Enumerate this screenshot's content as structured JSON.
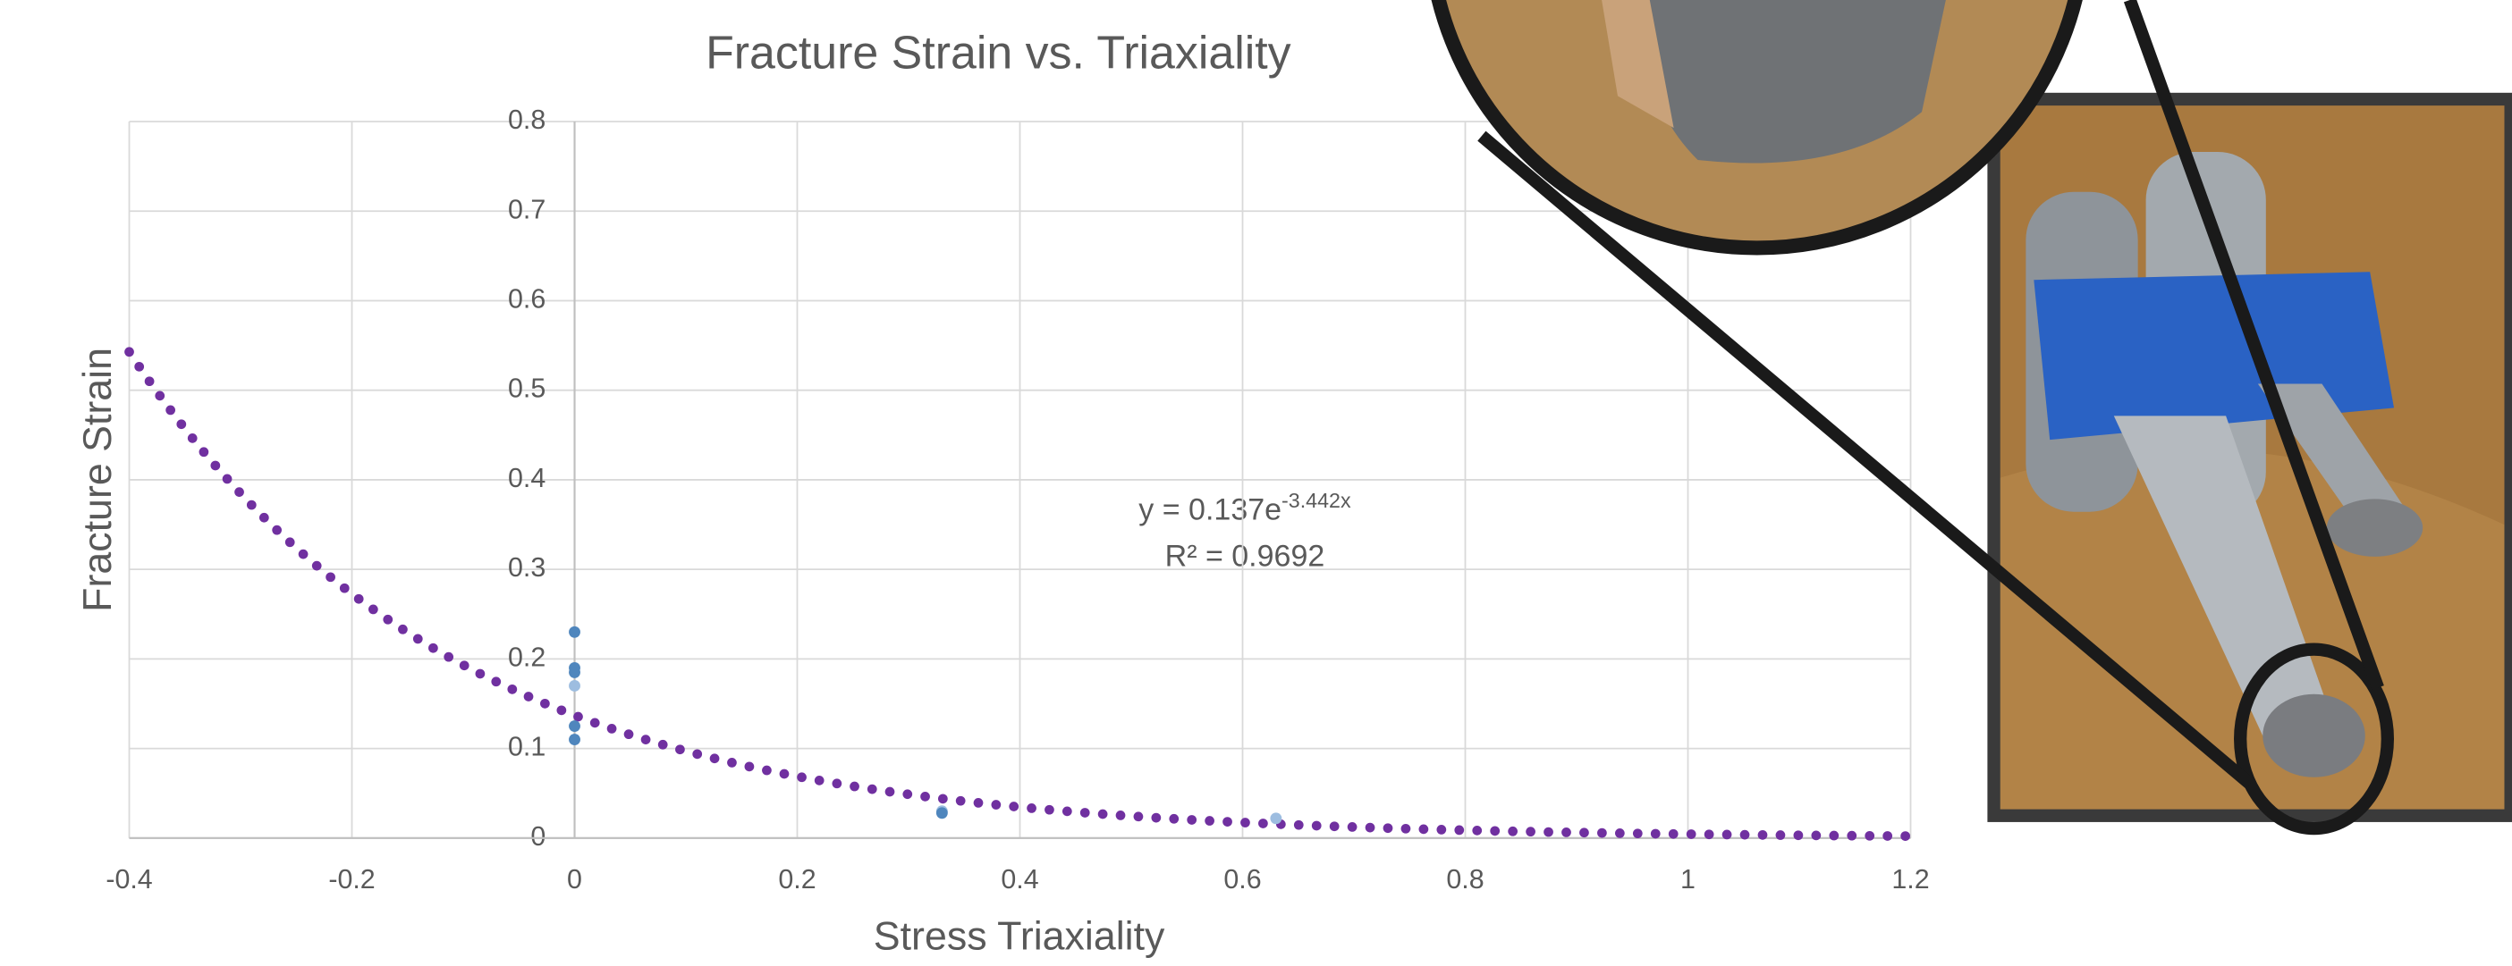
{
  "chart_data": {
    "type": "scatter",
    "title": "Fracture Strain vs. Triaxiality",
    "x_label": "Stress Triaxiality",
    "y_label": "Fracture Strain",
    "x": [
      0,
      0,
      0,
      0,
      0,
      0,
      0.33,
      0.33,
      0.63
    ],
    "values": [
      0.23,
      0.19,
      0.185,
      0.17,
      0.125,
      0.11,
      0.03,
      0.028,
      0.022
    ],
    "colors": [
      "#4f86bd",
      "#4f86bd",
      "#4f86bd",
      "#9dbde0",
      "#4f86bd",
      "#4f86bd",
      "#9dbde0",
      "#4f86bd",
      "#9dbde0"
    ],
    "trendline": {
      "type": "exponential",
      "a": 0.137,
      "b": -3.442,
      "color": "#7030a0",
      "equation": "y = 0.137e",
      "equation_exponent": "-3.442x",
      "r_squared": "R² = 0.9692"
    },
    "xlim": [
      -0.4,
      1.2
    ],
    "xticks": [
      -0.4,
      -0.2,
      0,
      0.2,
      0.4,
      0.6,
      0.8,
      1,
      1.2
    ],
    "ylim": [
      0,
      0.8
    ],
    "yticks": [
      0,
      0.1,
      0.2,
      0.3,
      0.4,
      0.5,
      0.6,
      0.7,
      0.8
    ],
    "grid": true
  }
}
